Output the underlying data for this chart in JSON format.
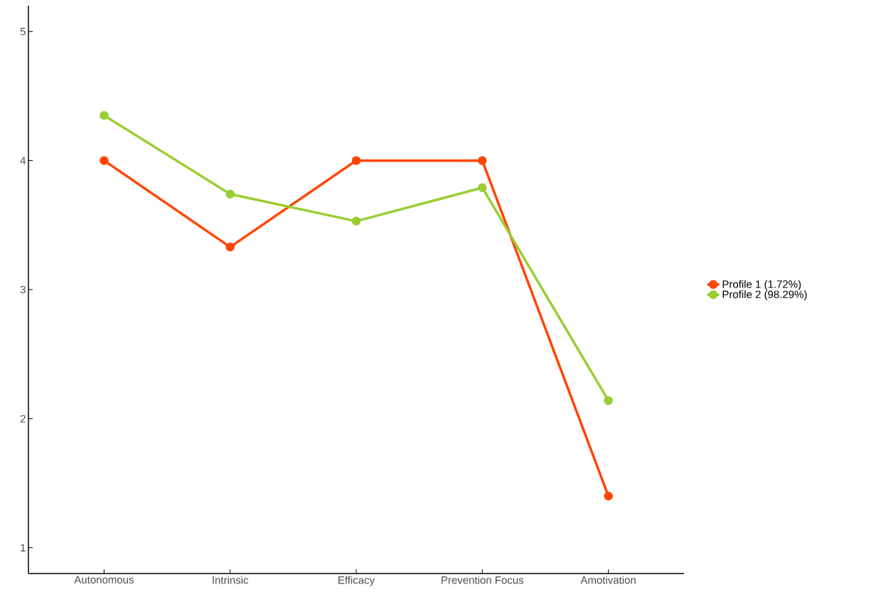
{
  "chart_data": {
    "type": "line",
    "categories": [
      "Autonomous",
      "Intrinsic",
      "Efficacy",
      "Prevention Focus",
      "Amotivation"
    ],
    "series": [
      {
        "name": "Profile 1 (1.72%)",
        "color": "#ff4500",
        "values": [
          4.0,
          3.33,
          4.0,
          4.0,
          1.4
        ]
      },
      {
        "name": "Profile 2 (98.29%)",
        "color": "#9acd32",
        "values": [
          4.35,
          3.74,
          3.53,
          3.79,
          2.14
        ]
      }
    ],
    "ylim": [
      0.8,
      5.2
    ],
    "yticks": [
      1,
      2,
      3,
      4,
      5
    ],
    "grid": false,
    "legend": "right",
    "marker": "circle",
    "line_style": "solid"
  }
}
